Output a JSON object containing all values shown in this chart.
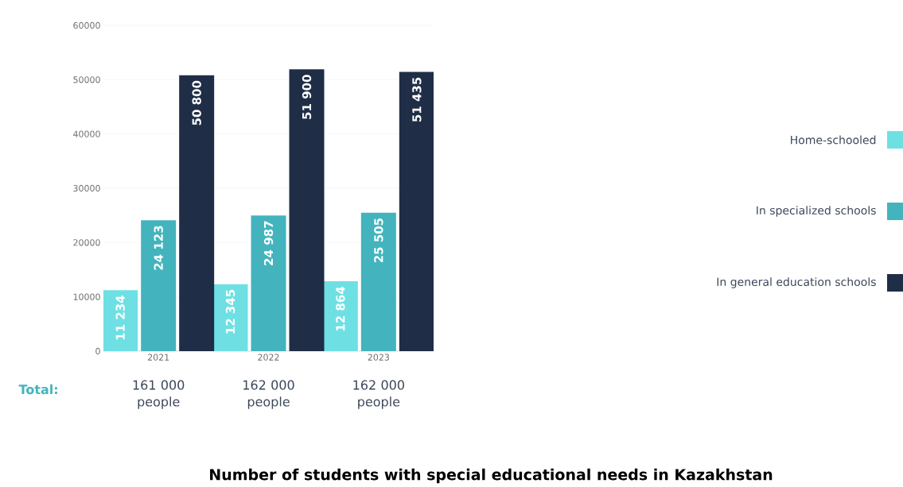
{
  "chart_data": {
    "type": "bar",
    "title": "Number of students with special educational needs in Kazakhstan",
    "categories": [
      "2021",
      "2022",
      "2023"
    ],
    "series": [
      {
        "name": "Home-schooled",
        "color": "#6ee0e4",
        "values": [
          11234,
          12345,
          12864
        ],
        "value_labels": [
          "11 234",
          "12 345",
          "12 864"
        ]
      },
      {
        "name": "In specialized schools",
        "color": "#43b4bd",
        "values": [
          24123,
          24987,
          25505
        ],
        "value_labels": [
          "24 123",
          "24 987",
          "25 505"
        ]
      },
      {
        "name": "In general education schools",
        "color": "#1f2d47",
        "values": [
          50800,
          51900,
          51435
        ],
        "value_labels": [
          "50 800",
          "51 900",
          "51 435"
        ]
      }
    ],
    "annotations": [
      "Total:",
      "161 000 people",
      "162 000 people",
      "162 000 people"
    ],
    "ylim": [
      0,
      60000
    ],
    "yticks": [
      0,
      10000,
      20000,
      30000,
      40000,
      50000,
      60000
    ],
    "grid": "y",
    "legend": "right"
  }
}
